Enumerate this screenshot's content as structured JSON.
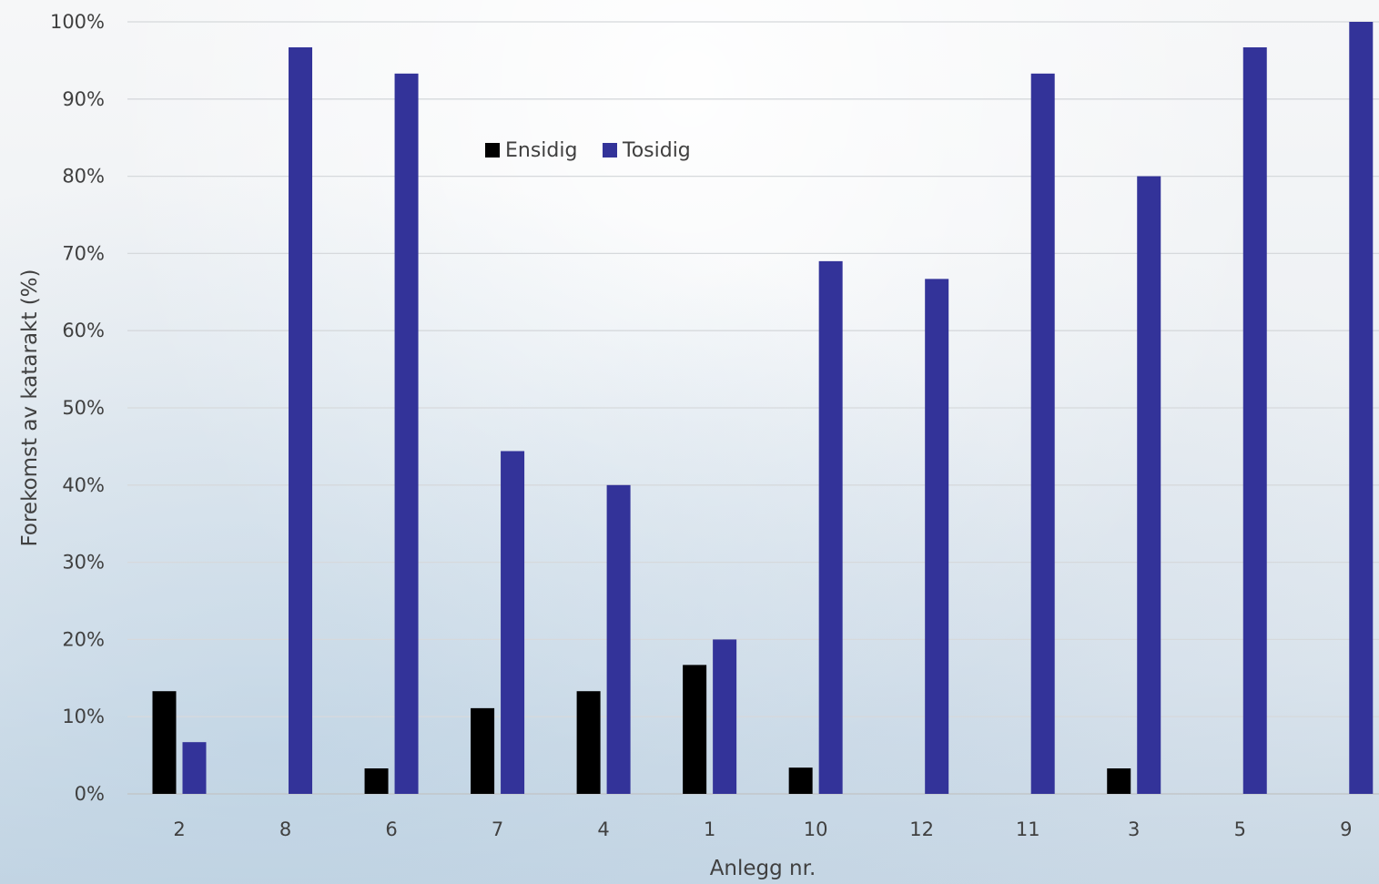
{
  "chart_data": {
    "type": "bar",
    "title": "",
    "xlabel": "Anlegg nr.",
    "ylabel": "Forekomst av katarakt (%)",
    "categories": [
      "2",
      "8",
      "6",
      "7",
      "4",
      "1",
      "10",
      "12",
      "11",
      "3",
      "5",
      "9"
    ],
    "series": [
      {
        "name": "Ensidig",
        "color": "#000000",
        "values": [
          13.3,
          0,
          3.3,
          11.1,
          13.3,
          16.7,
          3.4,
          0,
          0,
          3.3,
          0,
          0
        ]
      },
      {
        "name": "Tosidig",
        "color": "#333399",
        "values": [
          6.7,
          96.7,
          93.3,
          44.4,
          40.0,
          20.0,
          69.0,
          66.7,
          93.3,
          80.0,
          96.7,
          100.0
        ]
      }
    ],
    "ylim": [
      0,
      100
    ],
    "yticks": [
      0,
      10,
      20,
      30,
      40,
      50,
      60,
      70,
      80,
      90,
      100
    ],
    "ytick_format": "{v}%",
    "grid": true,
    "legend_position": "top-center"
  }
}
